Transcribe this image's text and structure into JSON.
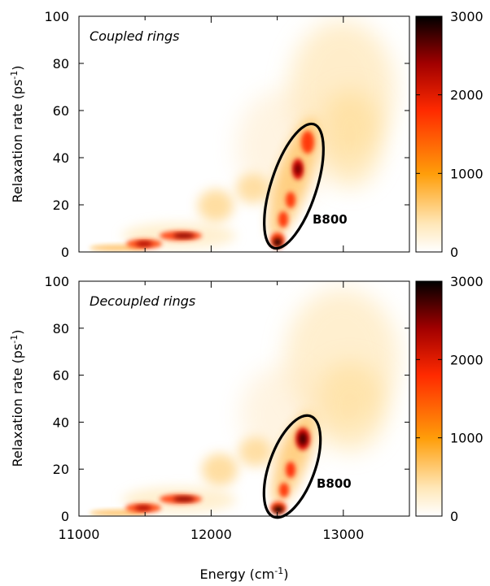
{
  "figure": {
    "xlabel": "Energy (cm",
    "xlabel_sup": "-1",
    "xlabel_tail": ")"
  },
  "chart_data": [
    {
      "type": "heatmap",
      "panel_label": "Coupled rings",
      "annotation": "B800",
      "ylabel": "Relaxation rate (ps",
      "ylabel_sup": "-1",
      "ylabel_tail": ")",
      "xlim": [
        11000,
        13500
      ],
      "ylim": [
        0,
        100
      ],
      "xticks": [
        11000,
        12000,
        13000
      ],
      "yticks": [
        0,
        20,
        40,
        60,
        80,
        100
      ],
      "colorbar": {
        "range": [
          0,
          3000
        ],
        "ticks": [
          0,
          1000,
          2000,
          3000
        ]
      },
      "density_peaks": [
        {
          "x": 11300,
          "y": 1.5,
          "value": 1600
        },
        {
          "x": 11480,
          "y": 3,
          "value": 2200
        },
        {
          "x": 11780,
          "y": 7,
          "value": 2500
        },
        {
          "x": 12050,
          "y": 19,
          "value": 700
        },
        {
          "x": 12320,
          "y": 26,
          "value": 650
        },
        {
          "x": 12500,
          "y": 3,
          "value": 2900
        },
        {
          "x": 12560,
          "y": 12,
          "value": 2400
        },
        {
          "x": 12600,
          "y": 22,
          "value": 2300
        },
        {
          "x": 12660,
          "y": 35,
          "value": 2800
        },
        {
          "x": 12740,
          "y": 46,
          "value": 2200
        },
        {
          "x": 13000,
          "y": 68,
          "value": 550
        },
        {
          "x": 13050,
          "y": 58,
          "value": 400
        }
      ],
      "ellipse": {
        "cx": 12620,
        "cy": 28,
        "rx_energy": 200,
        "ry_rate": 28
      }
    },
    {
      "type": "heatmap",
      "panel_label": "Decoupled rings",
      "annotation": "B800",
      "ylabel": "Relaxation rate (ps",
      "ylabel_sup": "-1",
      "ylabel_tail": ")",
      "xlim": [
        11000,
        13500
      ],
      "ylim": [
        0,
        100
      ],
      "xticks": [
        11000,
        12000,
        13000
      ],
      "yticks": [
        0,
        20,
        40,
        60,
        80,
        100
      ],
      "colorbar": {
        "range": [
          0,
          3000
        ],
        "ticks": [
          0,
          1000,
          2000,
          3000
        ]
      },
      "density_peaks": [
        {
          "x": 11300,
          "y": 1.5,
          "value": 1600
        },
        {
          "x": 11480,
          "y": 3,
          "value": 2200
        },
        {
          "x": 11780,
          "y": 7,
          "value": 2500
        },
        {
          "x": 12050,
          "y": 19,
          "value": 700
        },
        {
          "x": 12320,
          "y": 26,
          "value": 650
        },
        {
          "x": 12510,
          "y": 2,
          "value": 3000
        },
        {
          "x": 12560,
          "y": 10,
          "value": 2300
        },
        {
          "x": 12620,
          "y": 20,
          "value": 2200
        },
        {
          "x": 12700,
          "y": 33,
          "value": 2800
        },
        {
          "x": 12980,
          "y": 68,
          "value": 500
        },
        {
          "x": 13000,
          "y": 52,
          "value": 400
        }
      ],
      "ellipse": {
        "cx": 12600,
        "cy": 22,
        "rx_energy": 190,
        "ry_rate": 22
      }
    }
  ],
  "colors": {
    "colormap": [
      "#ffffff",
      "#ffd98a",
      "#ff9e0a",
      "#ff2a00",
      "#a10000",
      "#000000"
    ],
    "frame": "#000000",
    "ellipse": "#000000"
  }
}
